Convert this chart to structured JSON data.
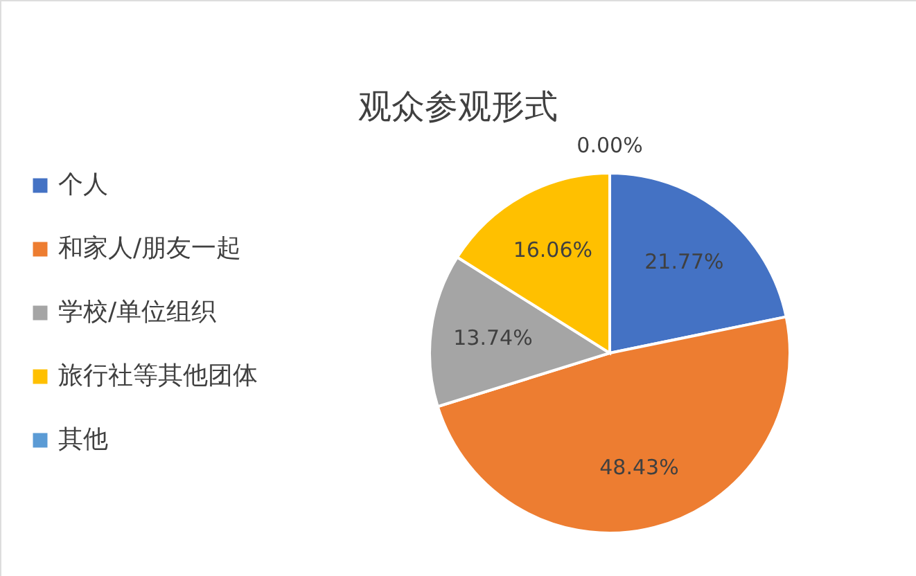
{
  "chart_data": {
    "type": "pie",
    "title": "观众参观形式",
    "categories": [
      "个人",
      "和家人/朋友一起",
      "学校/单位组织",
      "旅行社等其他团体",
      "其他"
    ],
    "values": [
      21.77,
      48.43,
      13.74,
      16.06,
      0.0
    ],
    "value_labels": [
      "21.77%",
      "48.43%",
      "13.74%",
      "16.06%",
      "0.00%"
    ],
    "colors": [
      "#4472c4",
      "#ed7d31",
      "#a5a5a5",
      "#ffc000",
      "#5b9bd5"
    ],
    "legend": "left"
  }
}
